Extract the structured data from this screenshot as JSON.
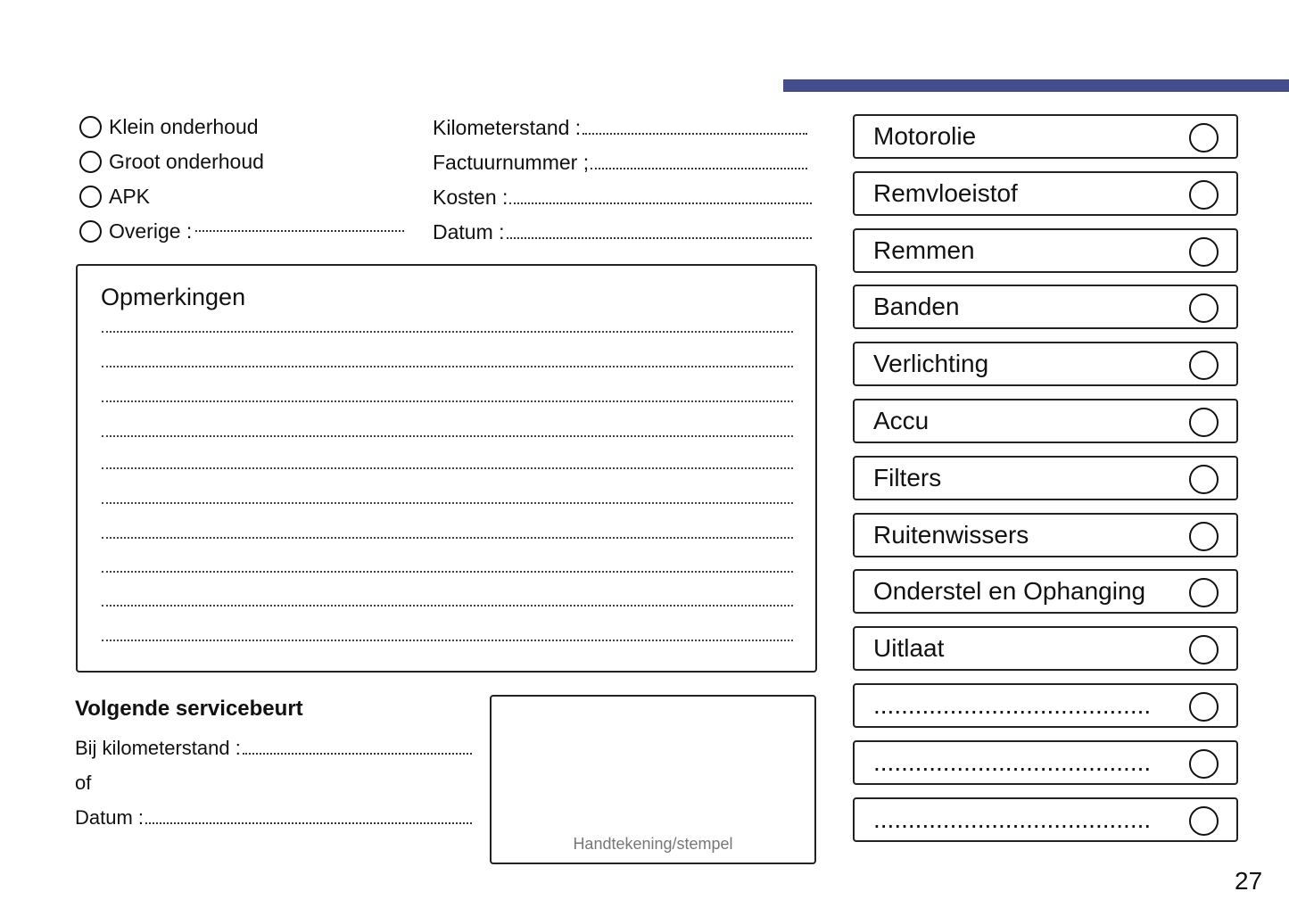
{
  "accent_color": "#454d8c",
  "service_types": [
    {
      "label": "Klein onderhoud",
      "has_line": false
    },
    {
      "label": "Groot onderhoud",
      "has_line": false
    },
    {
      "label": "APK",
      "has_line": false
    },
    {
      "label": "Overige :",
      "has_line": true
    }
  ],
  "fields": [
    "Kilometerstand :",
    "Factuurnummer ;",
    "Kosten :",
    "Datum :"
  ],
  "notes": {
    "title": "Opmerkingen"
  },
  "checklist": [
    "Motorolie",
    "Remvloeistof",
    "Remmen",
    "Banden",
    "Verlichting",
    "Accu",
    "Filters",
    "Ruitenwissers",
    "Onderstel en Ophanging",
    "Uitlaat",
    "........................................",
    "........................................",
    "........................................"
  ],
  "next_service": {
    "title": "Volgende servicebeurt",
    "km_label": "Bij kilometerstand :",
    "or_label": "of",
    "date_label": "Datum :"
  },
  "signature_label": "Handtekening/stempel",
  "page_number": "27"
}
